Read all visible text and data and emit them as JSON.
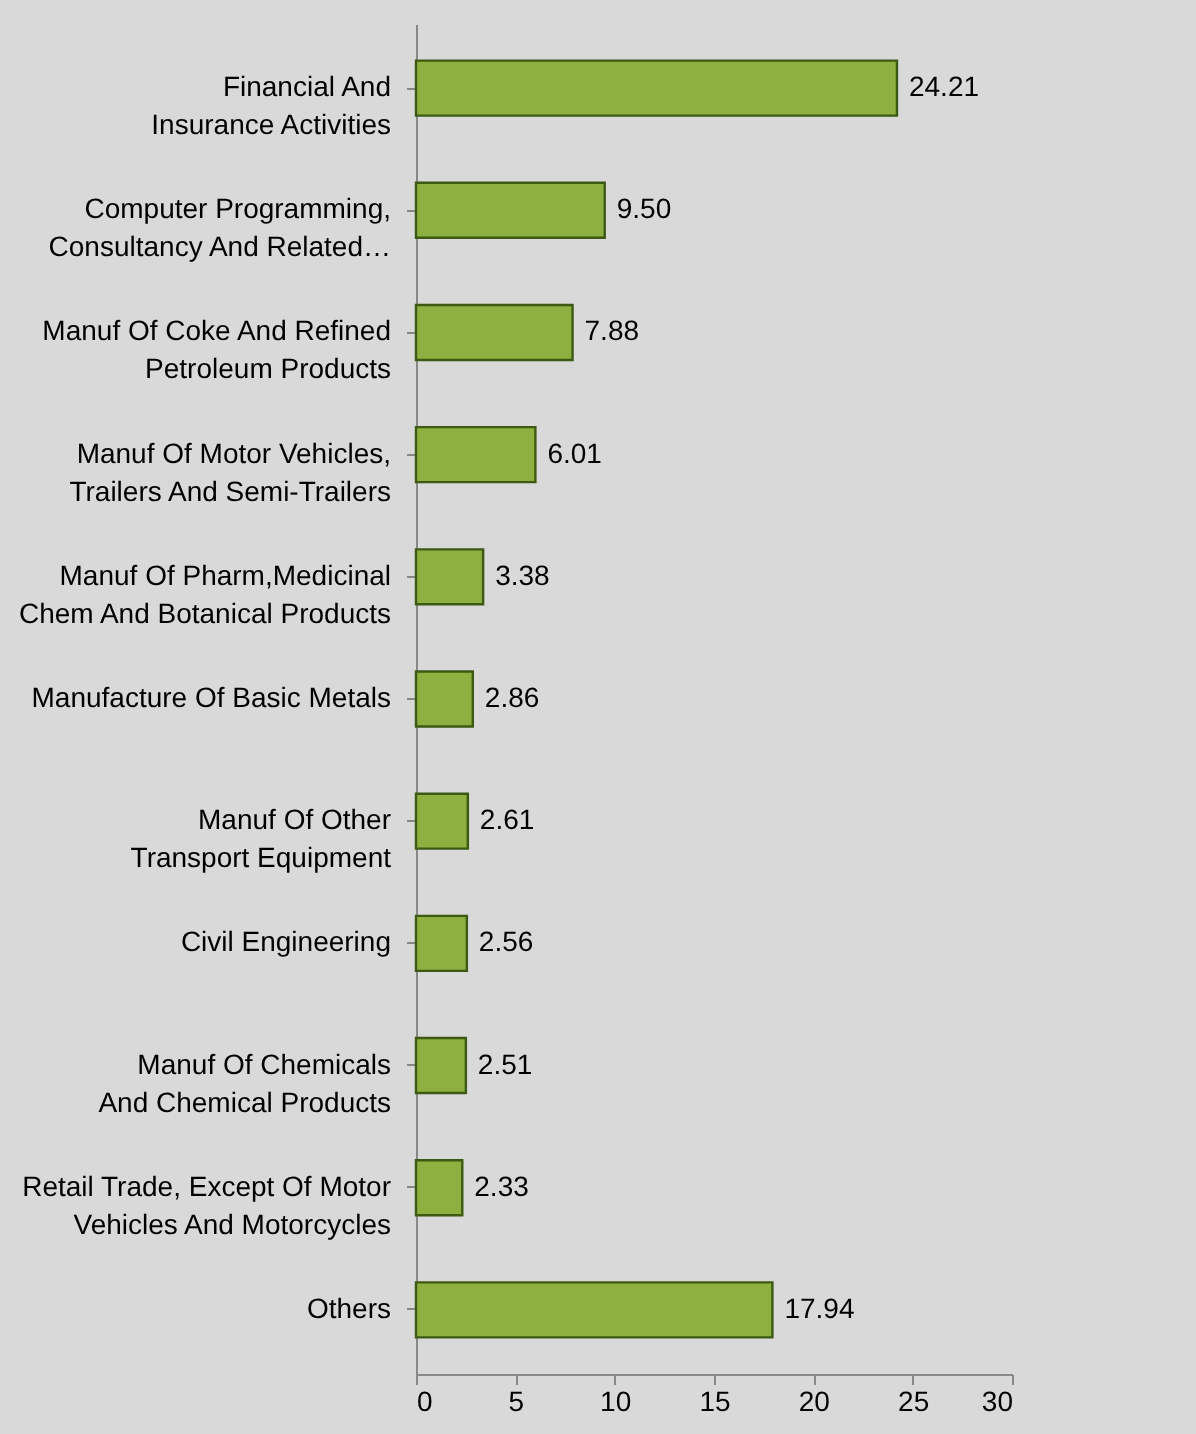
{
  "chart_data": {
    "type": "bar",
    "orientation": "horizontal",
    "categories": [
      "Financial And Insurance Activities",
      "Computer Programming, Consultancy And Related…",
      "Manuf Of Coke And Refined Petroleum Products",
      "Manuf Of Motor Vehicles, Trailers And Semi-Trailers",
      "Manuf Of Pharm,Medicinal Chem And Botanical Products",
      "Manufacture Of Basic Metals",
      "Manuf Of Other Transport Equipment",
      "Civil Engineering",
      "Manuf Of Chemicals And Chemical Products",
      "Retail Trade, Except Of Motor Vehicles And Motorcycles",
      "Others"
    ],
    "values": [
      24.21,
      9.5,
      7.88,
      6.01,
      3.38,
      2.86,
      2.61,
      2.56,
      2.51,
      2.33,
      17.94
    ],
    "value_labels": [
      "24.21",
      "9.50",
      "7.88",
      "6.01",
      "3.38",
      "2.86",
      "2.61",
      "2.56",
      "2.51",
      "2.33",
      "17.94"
    ],
    "color": "#8db040",
    "xlim": [
      0,
      30
    ],
    "xticks": [
      0,
      5,
      10,
      15,
      20,
      25,
      30
    ]
  }
}
